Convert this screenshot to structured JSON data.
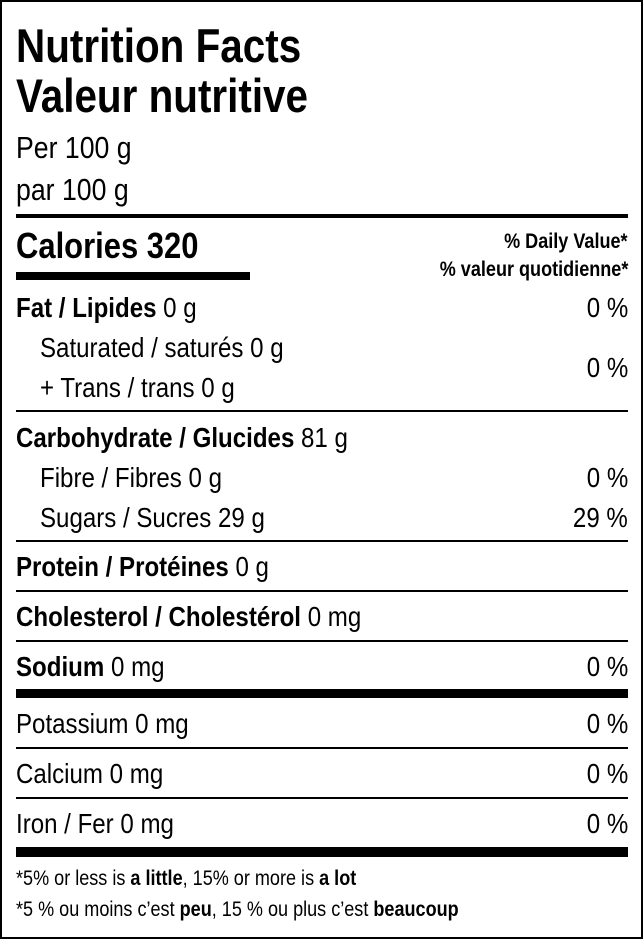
{
  "header": {
    "title_en": "Nutrition Facts",
    "title_fr": "Valeur nutritive",
    "serving_en": "Per 100 g",
    "serving_fr": "par 100 g"
  },
  "calories": {
    "label": "Calories",
    "value": "320",
    "dv_en": "% Daily Value*",
    "dv_fr": "% valeur quotidienne*"
  },
  "nutrients": {
    "fat": {
      "label": "Fat / Lipides",
      "amount": "0 g",
      "dv": "0 %"
    },
    "saturated": {
      "label": "Saturated / saturés",
      "amount": "0 g"
    },
    "trans": {
      "label": "+ Trans / trans",
      "amount": "0 g"
    },
    "sat_trans_dv": "0 %",
    "carbohydrate": {
      "label": "Carbohydrate / Glucides",
      "amount": "81 g"
    },
    "fibre": {
      "label": "Fibre / Fibres",
      "amount": "0 g",
      "dv": "0 %"
    },
    "sugars": {
      "label": "Sugars / Sucres",
      "amount": "29 g",
      "dv": "29 %"
    },
    "protein": {
      "label": "Protein / Protéines",
      "amount": "0 g"
    },
    "cholesterol": {
      "label": "Cholesterol / Cholestérol",
      "amount": "0 mg"
    },
    "sodium": {
      "label": "Sodium",
      "amount": "0 mg",
      "dv": "0 %"
    },
    "potassium": {
      "label": "Potassium",
      "amount": "0 mg",
      "dv": "0 %"
    },
    "calcium": {
      "label": "Calcium",
      "amount": "0 mg",
      "dv": "0 %"
    },
    "iron": {
      "label": "Iron / Fer",
      "amount": "0 mg",
      "dv": "0 %"
    }
  },
  "footnote": {
    "en": {
      "p1": "*5% or less is ",
      "b1": "a little",
      "p2": ", 15% or more is ",
      "b2": "a lot"
    },
    "fr": {
      "p1": "*5 % ou moins c’est ",
      "b1": "peu",
      "p2": ", 15 % ou plus c’est ",
      "b2": "beaucoup"
    }
  }
}
